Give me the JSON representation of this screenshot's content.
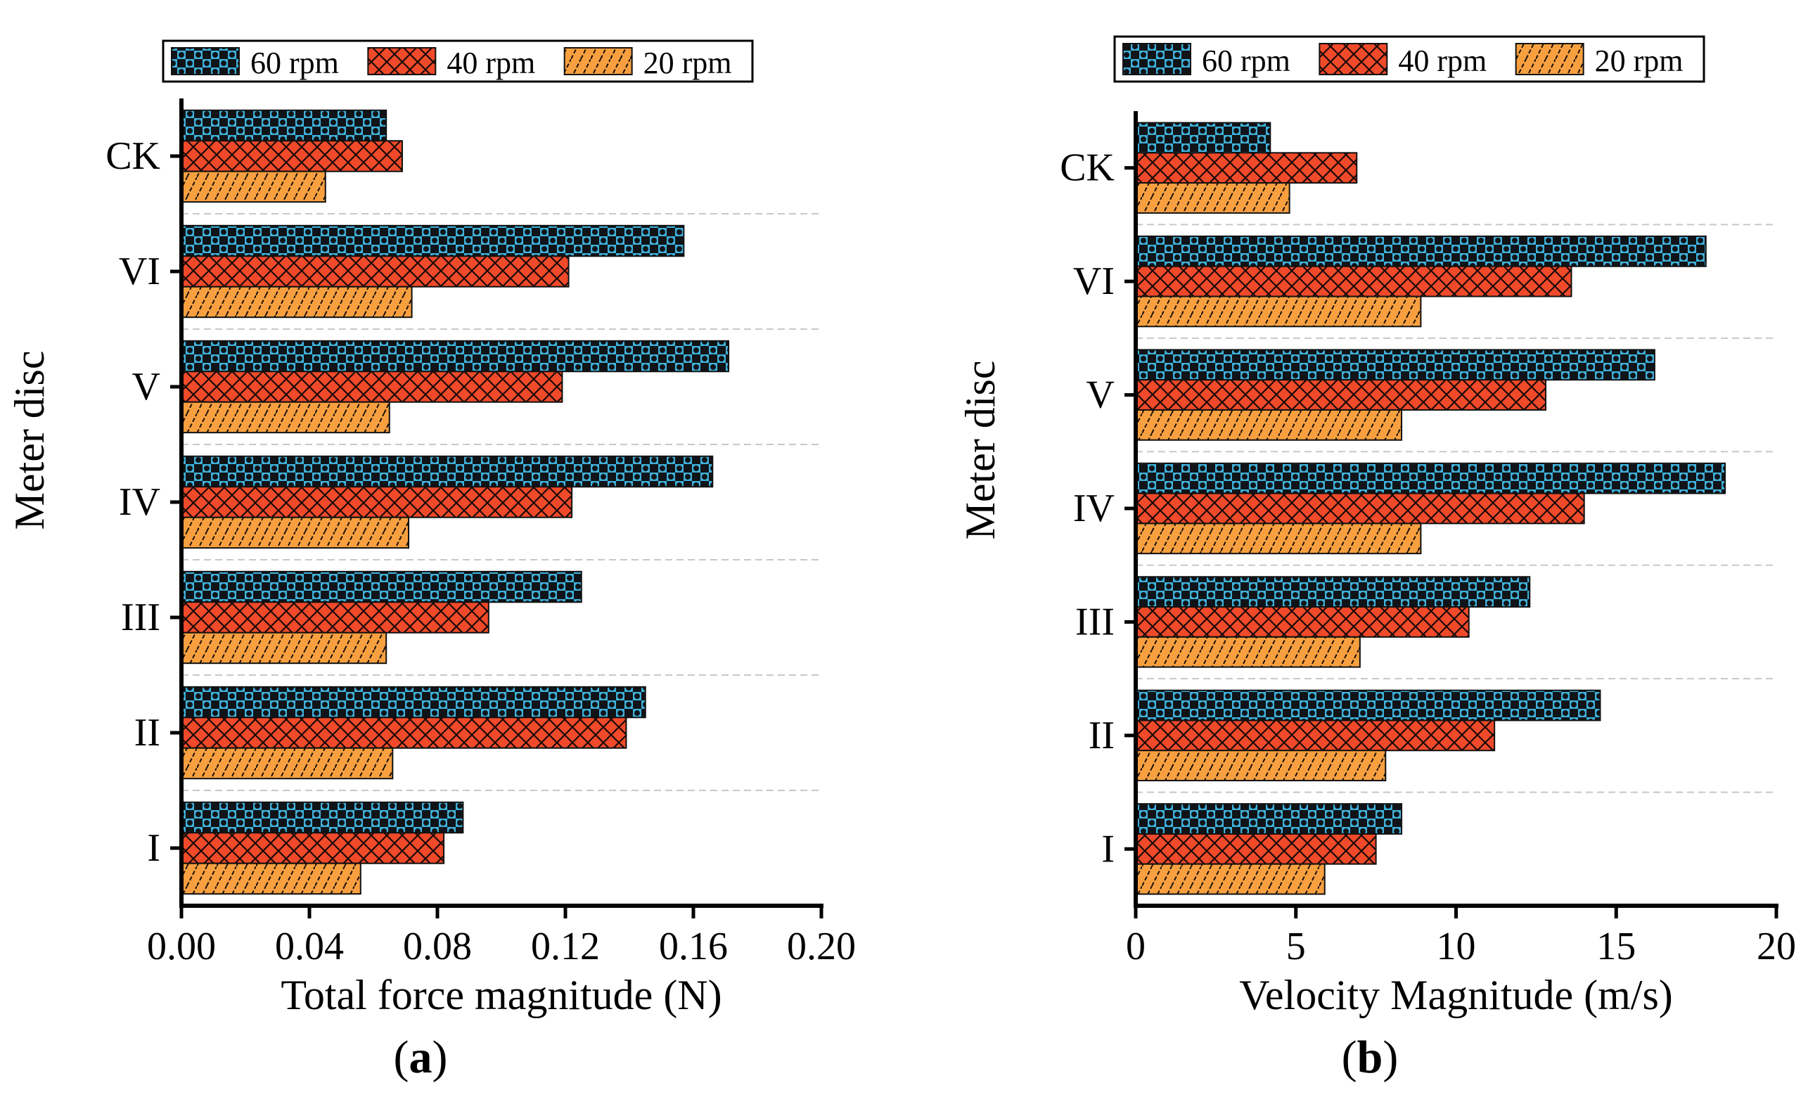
{
  "chart_data": [
    {
      "type": "bar",
      "orientation": "horizontal",
      "panel_label": "a",
      "categories": [
        "I",
        "II",
        "III",
        "IV",
        "V",
        "VI",
        "CK"
      ],
      "series": [
        {
          "name": "60 rpm",
          "color": "#3fb0d9",
          "values": [
            0.088,
            0.145,
            0.125,
            0.166,
            0.171,
            0.157,
            0.064
          ]
        },
        {
          "name": "40 rpm",
          "color": "#f04a2a",
          "values": [
            0.082,
            0.139,
            0.096,
            0.122,
            0.119,
            0.121,
            0.069
          ]
        },
        {
          "name": "20 rpm",
          "color": "#f8a040",
          "values": [
            0.056,
            0.066,
            0.064,
            0.071,
            0.065,
            0.072,
            0.045
          ]
        }
      ],
      "xlabel": "Total force magnitude (N)",
      "ylabel": "Meter disc",
      "xlim": [
        0,
        0.2
      ],
      "xticks": [
        "0.00",
        "0.04",
        "0.08",
        "0.12",
        "0.16",
        "0.20"
      ],
      "legend_position": "top"
    },
    {
      "type": "bar",
      "orientation": "horizontal",
      "panel_label": "b",
      "categories": [
        "I",
        "II",
        "III",
        "IV",
        "V",
        "VI",
        "CK"
      ],
      "series": [
        {
          "name": "60 rpm",
          "color": "#3fb0d9",
          "values": [
            8.3,
            14.5,
            12.3,
            18.4,
            16.2,
            17.8,
            4.2
          ]
        },
        {
          "name": "40 rpm",
          "color": "#f04a2a",
          "values": [
            7.5,
            11.2,
            10.4,
            14.0,
            12.8,
            13.6,
            6.9
          ]
        },
        {
          "name": "20 rpm",
          "color": "#f8a040",
          "values": [
            5.9,
            7.8,
            7.0,
            8.9,
            8.3,
            8.9,
            4.8
          ]
        }
      ],
      "xlabel": "Velocity Magnitude  (m/s)",
      "ylabel": "Meter disc",
      "xlim": [
        0,
        20
      ],
      "xticks": [
        "0",
        "5",
        "10",
        "15",
        "20"
      ],
      "legend_position": "top"
    }
  ]
}
